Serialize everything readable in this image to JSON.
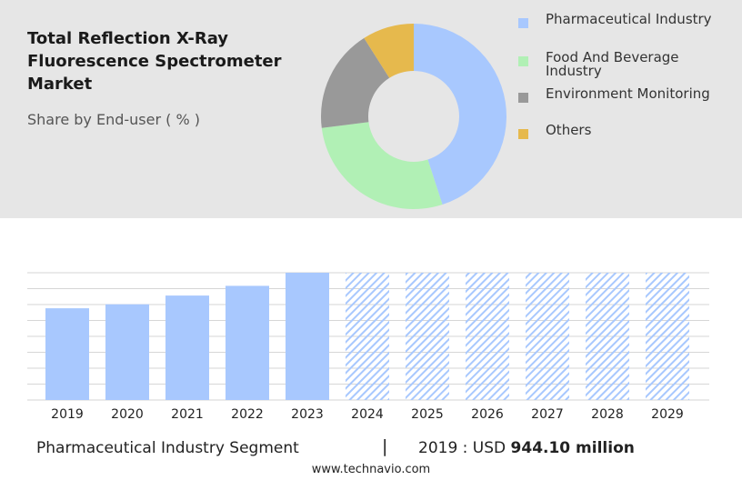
{
  "header": {
    "title": "Total Reflection X-Ray Fluorescence Spectrometer Market",
    "subtitle": "Share by End-user ( % )"
  },
  "colors": {
    "pharmaceutical": "#a8c8fe",
    "food_beverage": "#b1f0b5",
    "environment": "#999999",
    "others": "#e6b94d",
    "bar": "#a8c8fe",
    "forecast_hatch": "#a8c8fe",
    "panel_bg": "#e6e6e6"
  },
  "chart_data": [
    {
      "type": "pie",
      "title": "",
      "donut": true,
      "legend_position": "right",
      "categories": [
        "Pharmaceutical Industry",
        "Food And Beverage Industry",
        "Environment Monitoring",
        "Others"
      ],
      "values": [
        45,
        28,
        18,
        9
      ]
    },
    {
      "type": "bar",
      "title": "",
      "xlabel": "",
      "ylabel": "",
      "grid": true,
      "categories": [
        "2019",
        "2020",
        "2021",
        "2022",
        "2023",
        "2024",
        "2025",
        "2026",
        "2027",
        "2028",
        "2029"
      ],
      "values": [
        944.1,
        985,
        1075,
        1175,
        1310,
        null,
        null,
        null,
        null,
        null,
        null
      ],
      "forecast_categories": [
        "2024",
        "2025",
        "2026",
        "2027",
        "2028",
        "2029"
      ],
      "ylim": [
        0,
        1310
      ]
    }
  ],
  "footer": {
    "segment_label": "Pharmaceutical Industry Segment",
    "divider": "|",
    "year_prefix": "2019 : USD",
    "value": "944.10 million",
    "source": "www.technavio.com"
  }
}
